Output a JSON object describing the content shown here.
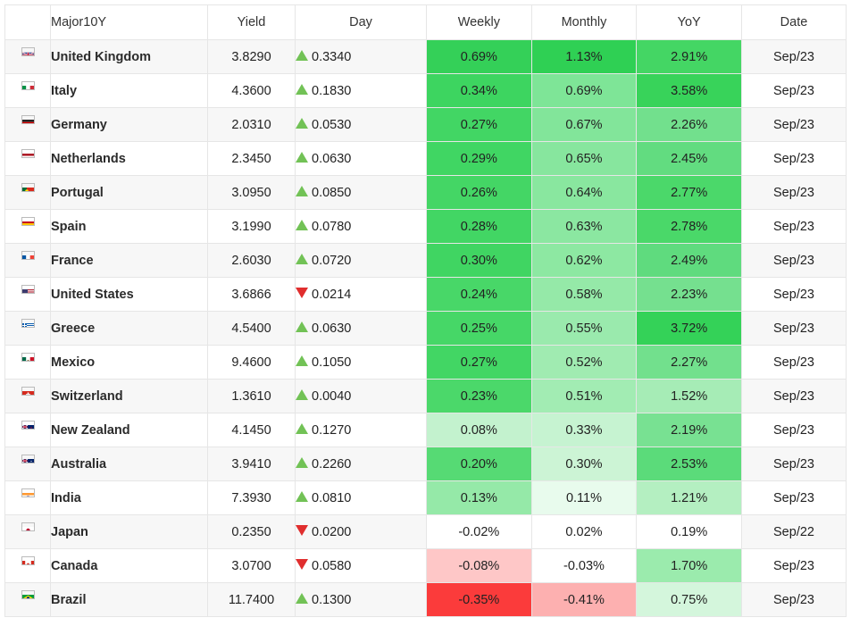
{
  "header": {
    "name": "Major10Y",
    "yield": "Yield",
    "day": "Day",
    "weekly": "Weekly",
    "monthly": "Monthly",
    "yoy": "YoY",
    "date": "Date"
  },
  "colors": {
    "up_arrow": "#72c256",
    "down_arrow": "#e02e2e"
  },
  "rows": [
    {
      "flag": "uk-flag-icon",
      "name": "United Kingdom",
      "yield": "3.8290",
      "dir": "up",
      "day": "0.3340",
      "weekly": "0.69%",
      "monthly": "1.13%",
      "yoy": "2.91%",
      "date": "Sep/23",
      "weekly_bg": "#34d058",
      "monthly_bg": "#2fd054",
      "yoy_bg": "#44d664"
    },
    {
      "flag": "italy-flag-icon",
      "name": "Italy",
      "yield": "4.3600",
      "dir": "up",
      "day": "0.1830",
      "weekly": "0.34%",
      "monthly": "0.69%",
      "yoy": "3.58%",
      "date": "Sep/23",
      "weekly_bg": "#3dd560",
      "monthly_bg": "#7ee597",
      "yoy_bg": "#38d35a"
    },
    {
      "flag": "germany-flag-icon",
      "name": "Germany",
      "yield": "2.0310",
      "dir": "up",
      "day": "0.0530",
      "weekly": "0.27%",
      "monthly": "0.67%",
      "yoy": "2.26%",
      "date": "Sep/23",
      "weekly_bg": "#42d664",
      "monthly_bg": "#82e59a",
      "yoy_bg": "#72e08d"
    },
    {
      "flag": "netherlands-flag-icon",
      "name": "Netherlands",
      "yield": "2.3450",
      "dir": "up",
      "day": "0.0630",
      "weekly": "0.29%",
      "monthly": "0.65%",
      "yoy": "2.45%",
      "date": "Sep/23",
      "weekly_bg": "#40d663",
      "monthly_bg": "#87e69e",
      "yoy_bg": "#62dc80"
    },
    {
      "flag": "portugal-flag-icon",
      "name": "Portugal",
      "yield": "3.0950",
      "dir": "up",
      "day": "0.0850",
      "weekly": "0.26%",
      "monthly": "0.64%",
      "yoy": "2.77%",
      "date": "Sep/23",
      "weekly_bg": "#44d665",
      "monthly_bg": "#89e79f",
      "yoy_bg": "#4bd86a"
    },
    {
      "flag": "spain-flag-icon",
      "name": "Spain",
      "yield": "3.1990",
      "dir": "up",
      "day": "0.0780",
      "weekly": "0.28%",
      "monthly": "0.63%",
      "yoy": "2.78%",
      "date": "Sep/23",
      "weekly_bg": "#42d664",
      "monthly_bg": "#8be7a1",
      "yoy_bg": "#4ad869"
    },
    {
      "flag": "france-flag-icon",
      "name": "France",
      "yield": "2.6030",
      "dir": "up",
      "day": "0.0720",
      "weekly": "0.30%",
      "monthly": "0.62%",
      "yoy": "2.49%",
      "date": "Sep/23",
      "weekly_bg": "#40d562",
      "monthly_bg": "#8de8a2",
      "yoy_bg": "#5fdb7e"
    },
    {
      "flag": "us-flag-icon",
      "name": "United States",
      "yield": "3.6866",
      "dir": "down",
      "day": "0.0214",
      "weekly": "0.24%",
      "monthly": "0.58%",
      "yoy": "2.23%",
      "date": "Sep/23",
      "weekly_bg": "#48d768",
      "monthly_bg": "#95e9a8",
      "yoy_bg": "#75e08f"
    },
    {
      "flag": "greece-flag-icon",
      "name": "Greece",
      "yield": "4.5400",
      "dir": "up",
      "day": "0.0630",
      "weekly": "0.25%",
      "monthly": "0.55%",
      "yoy": "3.72%",
      "date": "Sep/23",
      "weekly_bg": "#46d767",
      "monthly_bg": "#9aeaad",
      "yoy_bg": "#34d258"
    },
    {
      "flag": "mexico-flag-icon",
      "name": "Mexico",
      "yield": "9.4600",
      "dir": "up",
      "day": "0.1050",
      "weekly": "0.27%",
      "monthly": "0.52%",
      "yoy": "2.27%",
      "date": "Sep/23",
      "weekly_bg": "#42d664",
      "monthly_bg": "#a0ebb1",
      "yoy_bg": "#72e08d"
    },
    {
      "flag": "switzerland-flag-icon",
      "name": "Switzerland",
      "yield": "1.3610",
      "dir": "up",
      "day": "0.0040",
      "weekly": "0.23%",
      "monthly": "0.51%",
      "yoy": "1.52%",
      "date": "Sep/23",
      "weekly_bg": "#4bd86a",
      "monthly_bg": "#a2ecb3",
      "yoy_bg": "#a6ecb6"
    },
    {
      "flag": "new-zealand-flag-icon",
      "name": "New Zealand",
      "yield": "4.1450",
      "dir": "up",
      "day": "0.1270",
      "weekly": "0.08%",
      "monthly": "0.33%",
      "yoy": "2.19%",
      "date": "Sep/23",
      "weekly_bg": "#c3f2ce",
      "monthly_bg": "#c6f3d1",
      "yoy_bg": "#78e192"
    },
    {
      "flag": "australia-flag-icon",
      "name": "Australia",
      "yield": "3.9410",
      "dir": "up",
      "day": "0.2260",
      "weekly": "0.20%",
      "monthly": "0.30%",
      "yoy": "2.53%",
      "date": "Sep/23",
      "weekly_bg": "#56da74",
      "monthly_bg": "#ccf4d5",
      "yoy_bg": "#5bdb7a"
    },
    {
      "flag": "india-flag-icon",
      "name": "India",
      "yield": "7.3930",
      "dir": "up",
      "day": "0.0810",
      "weekly": "0.13%",
      "monthly": "0.11%",
      "yoy": "1.21%",
      "date": "Sep/23",
      "weekly_bg": "#95e9a8",
      "monthly_bg": "#e8fbed",
      "yoy_bg": "#b4efc1"
    },
    {
      "flag": "japan-flag-icon",
      "name": "Japan",
      "yield": "0.2350",
      "dir": "down",
      "day": "0.0200",
      "weekly": "-0.02%",
      "monthly": "0.02%",
      "yoy": "0.19%",
      "date": "Sep/22",
      "weekly_bg": "#ffffff",
      "monthly_bg": "#ffffff",
      "yoy_bg": "#ffffff"
    },
    {
      "flag": "canada-flag-icon",
      "name": "Canada",
      "yield": "3.0700",
      "dir": "down",
      "day": "0.0580",
      "weekly": "-0.08%",
      "monthly": "-0.03%",
      "yoy": "1.70%",
      "date": "Sep/23",
      "weekly_bg": "#fec7c7",
      "monthly_bg": "#ffffff",
      "yoy_bg": "#9bebad"
    },
    {
      "flag": "brazil-flag-icon",
      "name": "Brazil",
      "yield": "11.7400",
      "dir": "up",
      "day": "0.1300",
      "weekly": "-0.35%",
      "monthly": "-0.41%",
      "yoy": "0.75%",
      "date": "Sep/23",
      "weekly_bg": "#fb3b3b",
      "monthly_bg": "#fdb0b0",
      "yoy_bg": "#d4f6dc"
    }
  ]
}
